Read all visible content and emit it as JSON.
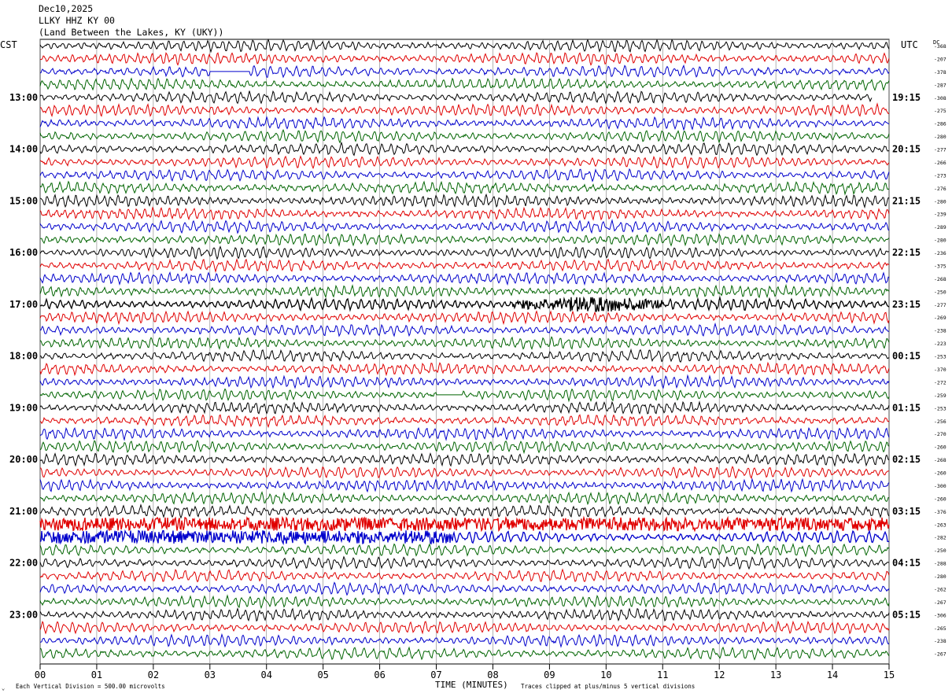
{
  "header": {
    "date": "Dec10,2025",
    "station": "LLKY HHZ KY 00",
    "location": "(Land Between the Lakes, KY (UKY))"
  },
  "left_label": "CST",
  "right_label": "UTC",
  "dc_label": "DC",
  "footer": {
    "scale_note": "Each Vertical Division =  500.00 microvolts",
    "xlabel": "TIME (MINUTES)",
    "clip_note": "Traces clipped at plus/minus 5 vertical divisions"
  },
  "colors": {
    "cycle": [
      "#000000",
      "#e00000",
      "#0000cc",
      "#006400"
    ],
    "grid": "#7f7f7f"
  },
  "chart_data": {
    "type": "line",
    "title": "LLKY HHZ KY 00",
    "xlabel": "TIME (MINUTES)",
    "xlim": [
      0,
      15
    ],
    "x_ticks": [
      "00",
      "01",
      "02",
      "03",
      "04",
      "05",
      "06",
      "07",
      "08",
      "09",
      "10",
      "11",
      "12",
      "13",
      "14",
      "15"
    ],
    "rows_per_hour": 4,
    "row_count": 48,
    "left_hour_labels": [
      "13:00",
      "14:00",
      "15:00",
      "16:00",
      "17:00",
      "18:00",
      "19:00",
      "20:00",
      "21:00",
      "22:00",
      "23:00"
    ],
    "right_hour_labels": [
      "19:15",
      "20:15",
      "21:15",
      "22:15",
      "23:15",
      "00:15",
      "01:15",
      "02:15",
      "03:15",
      "04:15",
      "05:15"
    ],
    "dc_offsets": [
      "-368",
      "-207",
      "-378",
      "-287",
      "-308",
      "-275",
      "-286",
      "-280",
      "-277",
      "-266",
      "-273",
      "-276",
      "-280",
      "-239",
      "-289",
      "-280",
      "-236",
      "-375",
      "-268",
      "-250",
      "-277",
      "-269",
      "-238",
      "-223",
      "-253",
      "-370",
      "-272",
      "-259",
      "-253",
      "-256",
      "-270",
      "-260",
      "-268",
      "-260",
      "-300",
      "-260",
      "-376",
      "-263",
      "-282",
      "-250",
      "-288",
      "-280",
      "-262",
      "-267",
      "-306",
      "-265",
      "-238",
      "-267"
    ],
    "events": [
      {
        "row": 20,
        "start_min": 8.3,
        "end_min": 11.0,
        "description": "large amplitude burst"
      },
      {
        "row": 37,
        "start_min": 0.0,
        "end_min": 15.0,
        "description": "elevated high-frequency noise"
      },
      {
        "row": 38,
        "start_min": 0.0,
        "end_min": 7.3,
        "description": "elevated high-frequency noise"
      }
    ],
    "flat_segments": [
      {
        "row": 2,
        "start_min": 3.0,
        "end_min": 3.7
      },
      {
        "row": 27,
        "start_min": 7.0,
        "end_min": 7.45
      }
    ],
    "truncated_rows": [
      {
        "row": 4,
        "end_min": 14.7
      }
    ]
  }
}
